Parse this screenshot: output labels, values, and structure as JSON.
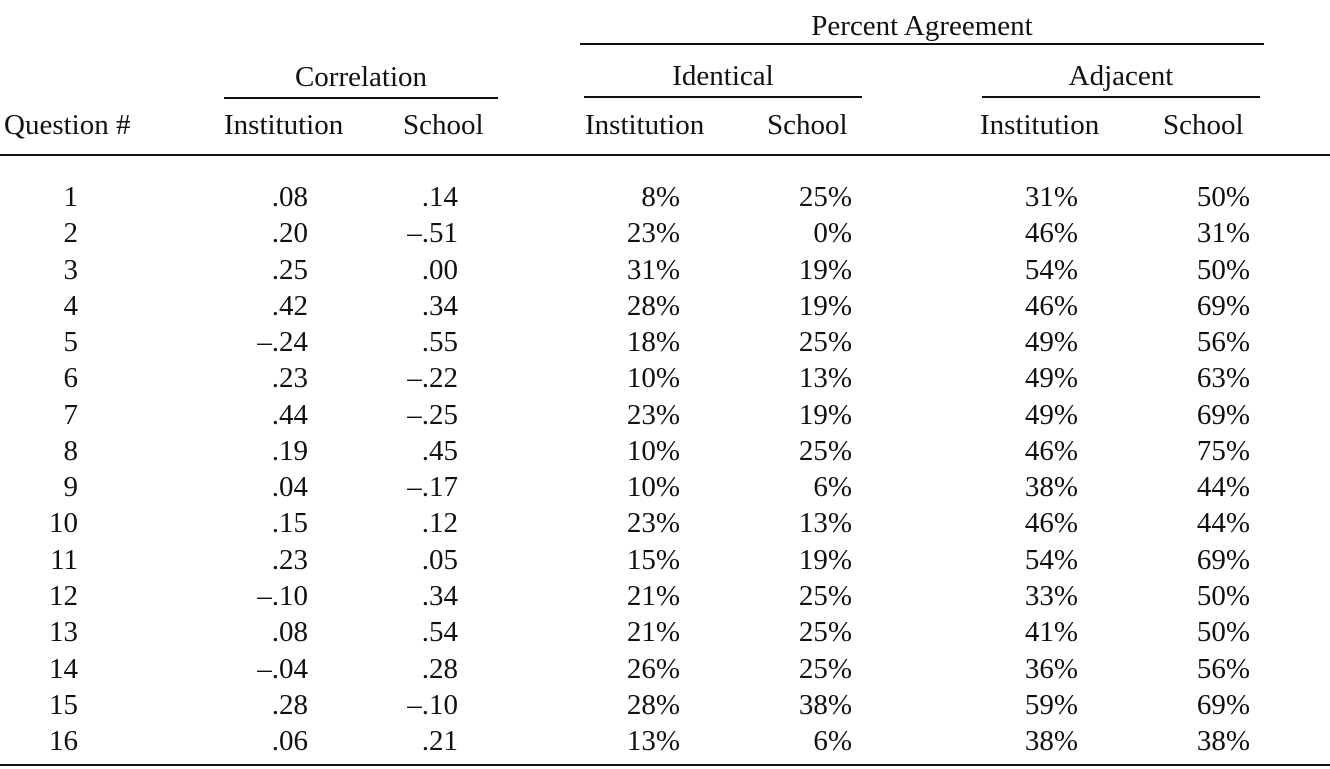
{
  "headers": {
    "percent_agreement": "Percent Agreement",
    "correlation": "Correlation",
    "identical": "Identical",
    "adjacent": "Adjacent",
    "question": "Question #",
    "corr_institution": "Institution",
    "corr_school": "School",
    "ident_institution": "Institution",
    "ident_school": "School",
    "adj_institution": "Institution",
    "adj_school": "School"
  },
  "rows": [
    [
      "1",
      ".08",
      ".14",
      "8%",
      "25%",
      "31%",
      "50%"
    ],
    [
      "2",
      ".20",
      "–.51",
      "23%",
      "0%",
      "46%",
      "31%"
    ],
    [
      "3",
      ".25",
      ".00",
      "31%",
      "19%",
      "54%",
      "50%"
    ],
    [
      "4",
      ".42",
      ".34",
      "28%",
      "19%",
      "46%",
      "69%"
    ],
    [
      "5",
      "–.24",
      ".55",
      "18%",
      "25%",
      "49%",
      "56%"
    ],
    [
      "6",
      ".23",
      "–.22",
      "10%",
      "13%",
      "49%",
      "63%"
    ],
    [
      "7",
      ".44",
      "–.25",
      "23%",
      "19%",
      "49%",
      "69%"
    ],
    [
      "8",
      ".19",
      ".45",
      "10%",
      "25%",
      "46%",
      "75%"
    ],
    [
      "9",
      ".04",
      "–.17",
      "10%",
      "6%",
      "38%",
      "44%"
    ],
    [
      "10",
      ".15",
      ".12",
      "23%",
      "13%",
      "46%",
      "44%"
    ],
    [
      "11",
      ".23",
      ".05",
      "15%",
      "19%",
      "54%",
      "69%"
    ],
    [
      "12",
      "–.10",
      ".34",
      "21%",
      "25%",
      "33%",
      "50%"
    ],
    [
      "13",
      ".08",
      ".54",
      "21%",
      "25%",
      "41%",
      "50%"
    ],
    [
      "14",
      "–.04",
      ".28",
      "26%",
      "25%",
      "36%",
      "56%"
    ],
    [
      "15",
      ".28",
      "–.10",
      "28%",
      "38%",
      "59%",
      "69%"
    ],
    [
      "16",
      ".06",
      ".21",
      "13%",
      "6%",
      "38%",
      "38%"
    ]
  ]
}
